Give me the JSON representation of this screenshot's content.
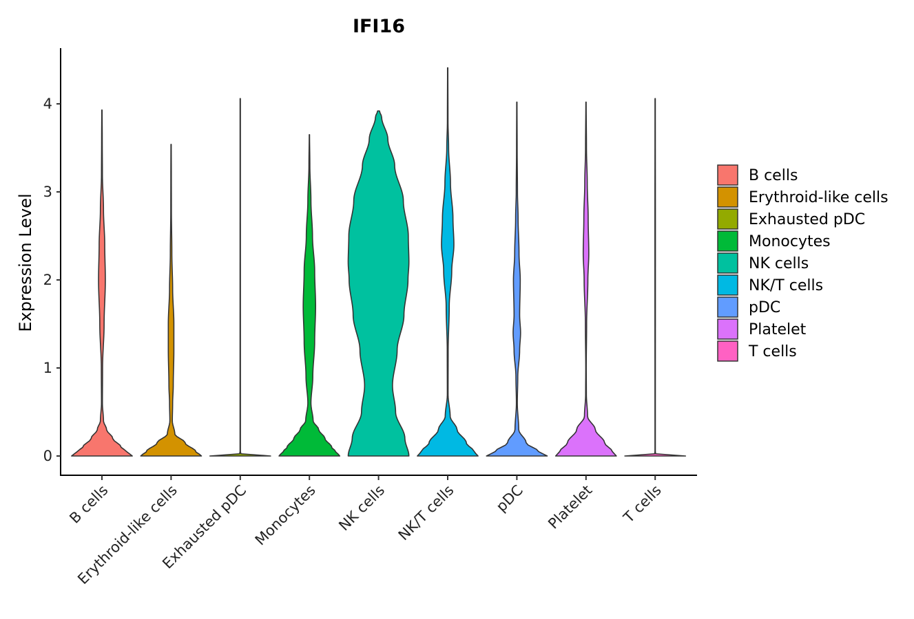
{
  "chart_data": {
    "type": "violin",
    "title": "IFI16",
    "xlabel": "",
    "ylabel": "Expression Level",
    "ylim": [
      -0.2,
      4.5
    ],
    "yticks": [
      0,
      1,
      2,
      3,
      4
    ],
    "categories": [
      "B cells",
      "Erythroid-like cells",
      "Exhausted pDC",
      "Monocytes",
      "NK cells",
      "NK/T cells",
      "pDC",
      "Platelet",
      "T cells"
    ],
    "colors": [
      "#F8766D",
      "#D39200",
      "#93AA00",
      "#00BA38",
      "#00C19F",
      "#00B9E3",
      "#619CFF",
      "#DB72FB",
      "#FF61C3"
    ],
    "violins": [
      {
        "name": "B cells",
        "max": 3.93,
        "profile": [
          [
            0,
            0.98
          ],
          [
            0.05,
            0.8
          ],
          [
            0.1,
            0.62
          ],
          [
            0.2,
            0.35
          ],
          [
            0.3,
            0.15
          ],
          [
            0.4,
            0.05
          ],
          [
            0.6,
            0.015
          ],
          [
            1.0,
            0.02
          ],
          [
            1.5,
            0.07
          ],
          [
            2.0,
            0.11
          ],
          [
            2.4,
            0.09
          ],
          [
            2.8,
            0.05
          ],
          [
            3.2,
            0.015
          ],
          [
            3.6,
            0.01
          ],
          [
            3.93,
            0.005
          ]
        ]
      },
      {
        "name": "Erythroid-like cells",
        "max": 3.54,
        "profile": [
          [
            0,
            0.98
          ],
          [
            0.05,
            0.8
          ],
          [
            0.15,
            0.45
          ],
          [
            0.25,
            0.12
          ],
          [
            0.4,
            0.04
          ],
          [
            0.6,
            0.05
          ],
          [
            0.8,
            0.07
          ],
          [
            1.2,
            0.09
          ],
          [
            1.5,
            0.09
          ],
          [
            1.9,
            0.05
          ],
          [
            2.3,
            0.025
          ],
          [
            2.8,
            0.01
          ],
          [
            3.2,
            0.008
          ],
          [
            3.54,
            0.005
          ]
        ]
      },
      {
        "name": "Exhausted pDC",
        "max": 4.06,
        "profile": [
          [
            0,
            0.98
          ],
          [
            0.01,
            0.03
          ],
          [
            0.05,
            0.006
          ],
          [
            1.0,
            0.006
          ],
          [
            4.06,
            0.005
          ]
        ]
      },
      {
        "name": "Monocytes",
        "max": 3.65,
        "profile": [
          [
            0,
            0.98
          ],
          [
            0.05,
            0.85
          ],
          [
            0.1,
            0.72
          ],
          [
            0.2,
            0.5
          ],
          [
            0.3,
            0.3
          ],
          [
            0.4,
            0.12
          ],
          [
            0.6,
            0.05
          ],
          [
            0.9,
            0.11
          ],
          [
            1.3,
            0.17
          ],
          [
            1.7,
            0.2
          ],
          [
            2.1,
            0.17
          ],
          [
            2.5,
            0.1
          ],
          [
            2.9,
            0.05
          ],
          [
            3.3,
            0.015
          ],
          [
            3.65,
            0.005
          ]
        ]
      },
      {
        "name": "NK cells",
        "max": 3.92,
        "profile": [
          [
            0,
            0.98
          ],
          [
            0.2,
            0.85
          ],
          [
            0.5,
            0.55
          ],
          [
            0.8,
            0.45
          ],
          [
            1.2,
            0.6
          ],
          [
            1.6,
            0.82
          ],
          [
            2.0,
            0.95
          ],
          [
            2.2,
            0.98
          ],
          [
            2.5,
            0.96
          ],
          [
            2.9,
            0.8
          ],
          [
            3.3,
            0.52
          ],
          [
            3.6,
            0.3
          ],
          [
            3.85,
            0.1
          ],
          [
            3.92,
            0.03
          ]
        ]
      },
      {
        "name": "NK/T cells",
        "max": 4.41,
        "profile": [
          [
            0,
            0.98
          ],
          [
            0.05,
            0.85
          ],
          [
            0.15,
            0.6
          ],
          [
            0.3,
            0.3
          ],
          [
            0.45,
            0.08
          ],
          [
            0.7,
            0.012
          ],
          [
            1.2,
            0.015
          ],
          [
            1.7,
            0.05
          ],
          [
            2.1,
            0.13
          ],
          [
            2.4,
            0.2
          ],
          [
            2.7,
            0.17
          ],
          [
            3.1,
            0.09
          ],
          [
            3.5,
            0.03
          ],
          [
            3.8,
            0.01
          ],
          [
            4.41,
            0.005
          ]
        ]
      },
      {
        "name": "pDC",
        "max": 4.02,
        "profile": [
          [
            0,
            0.98
          ],
          [
            0.05,
            0.7
          ],
          [
            0.15,
            0.3
          ],
          [
            0.3,
            0.06
          ],
          [
            0.6,
            0.015
          ],
          [
            0.9,
            0.03
          ],
          [
            1.2,
            0.09
          ],
          [
            1.4,
            0.12
          ],
          [
            1.6,
            0.09
          ],
          [
            2.0,
            0.11
          ],
          [
            2.3,
            0.07
          ],
          [
            2.7,
            0.04
          ],
          [
            3.0,
            0.02
          ],
          [
            3.5,
            0.01
          ],
          [
            4.02,
            0.005
          ]
        ]
      },
      {
        "name": "Platelet",
        "max": 4.02,
        "profile": [
          [
            0,
            0.98
          ],
          [
            0.05,
            0.85
          ],
          [
            0.15,
            0.6
          ],
          [
            0.3,
            0.3
          ],
          [
            0.45,
            0.05
          ],
          [
            0.7,
            0.012
          ],
          [
            1.0,
            0.008
          ],
          [
            1.5,
            0.02
          ],
          [
            2.0,
            0.06
          ],
          [
            2.3,
            0.09
          ],
          [
            2.7,
            0.07
          ],
          [
            3.1,
            0.04
          ],
          [
            3.5,
            0.015
          ],
          [
            4.02,
            0.005
          ]
        ]
      },
      {
        "name": "T cells",
        "max": 4.06,
        "profile": [
          [
            0,
            0.98
          ],
          [
            0.01,
            0.02
          ],
          [
            0.05,
            0.006
          ],
          [
            2.5,
            0.008
          ],
          [
            4.06,
            0.005
          ]
        ]
      }
    ],
    "legend": {
      "position": "right",
      "items": [
        "B cells",
        "Erythroid-like cells",
        "Exhausted pDC",
        "Monocytes",
        "NK cells",
        "NK/T cells",
        "pDC",
        "Platelet",
        "T cells"
      ]
    }
  }
}
